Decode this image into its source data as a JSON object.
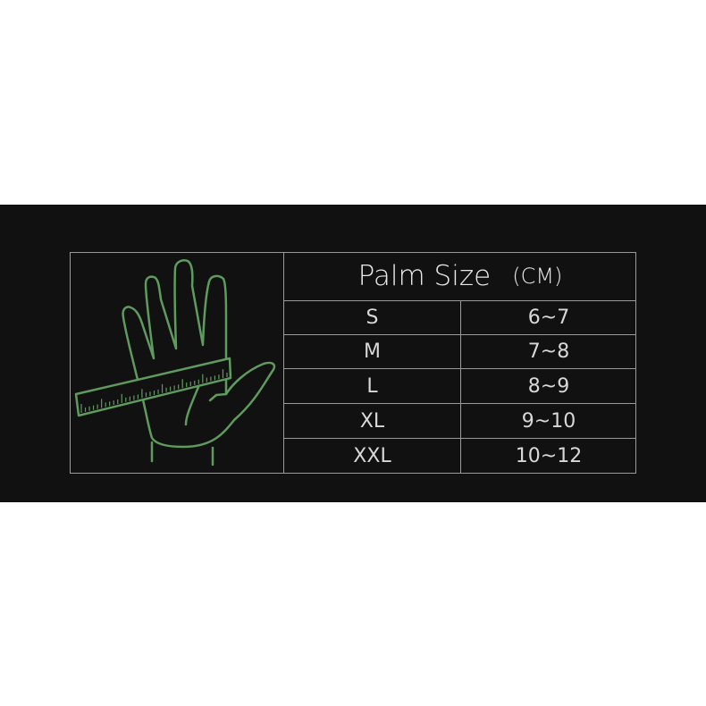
{
  "header": {
    "title": "Palm Size",
    "unit": "(CM)"
  },
  "rows": [
    {
      "size": "S",
      "range": "6~7"
    },
    {
      "size": "M",
      "range": "7~8"
    },
    {
      "size": "L",
      "range": "8~9"
    },
    {
      "size": "XL",
      "range": "9~10"
    },
    {
      "size": "XXL",
      "range": "10~12"
    }
  ],
  "colors": {
    "background": "#111111",
    "illustration": "#5f9a5f",
    "border": "#9a9a9a",
    "text": "#e0e0e0"
  },
  "illustration": "hand-with-ruler-icon"
}
